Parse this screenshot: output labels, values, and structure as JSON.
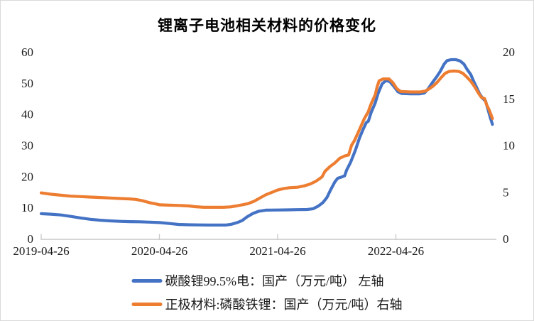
{
  "title": "锂离子电池相关材料的价格变化",
  "colors": {
    "background": "#ffffff",
    "frame_border": "#d9d9d9",
    "axis_line": "#c9c9c9",
    "tick_mark": "#c9c9c9",
    "text": "#1a1a1a",
    "series_blue": "#4472C4",
    "series_orange": "#ED7D31"
  },
  "chart_data": {
    "type": "line",
    "title": "锂离子电池相关材料的价格变化",
    "grid": false,
    "legend_position": "bottom",
    "x_axis": {
      "unit": "date",
      "tick_labels": [
        "2019-04-26",
        "2020-04-26",
        "2021-04-26",
        "2022-04-26"
      ],
      "tick_months": [
        0,
        12,
        24,
        36
      ],
      "months_span": 46.2
    },
    "left_axis": {
      "ticks": [
        0,
        10,
        20,
        30,
        40,
        50,
        60
      ],
      "range": [
        0,
        60
      ]
    },
    "right_axis": {
      "ticks": [
        0,
        5,
        10,
        15,
        20
      ],
      "range": [
        0,
        20
      ]
    },
    "series": [
      {
        "id": "lithium-carbonate",
        "name": "碳酸锂99.5%电：国产（万元/吨） 左轴",
        "axis": "left",
        "color": "#4472C4",
        "points": [
          [
            0,
            8.0
          ],
          [
            1,
            7.85
          ],
          [
            2,
            7.6
          ],
          [
            3,
            7.15
          ],
          [
            4,
            6.65
          ],
          [
            5,
            6.2
          ],
          [
            6,
            5.9
          ],
          [
            7,
            5.7
          ],
          [
            8,
            5.55
          ],
          [
            9,
            5.45
          ],
          [
            10,
            5.4
          ],
          [
            11,
            5.3
          ],
          [
            12,
            5.15
          ],
          [
            13,
            4.85
          ],
          [
            14,
            4.55
          ],
          [
            15,
            4.45
          ],
          [
            16,
            4.4
          ],
          [
            17,
            4.35
          ],
          [
            18,
            4.35
          ],
          [
            18.7,
            4.35
          ],
          [
            19.3,
            4.6
          ],
          [
            19.9,
            5.15
          ],
          [
            20.4,
            5.8
          ],
          [
            20.9,
            7.0
          ],
          [
            21.5,
            8.1
          ],
          [
            22.1,
            8.8
          ],
          [
            22.8,
            9.15
          ],
          [
            24,
            9.2
          ],
          [
            25,
            9.25
          ],
          [
            26,
            9.3
          ],
          [
            27,
            9.35
          ],
          [
            27.6,
            9.6
          ],
          [
            28.1,
            10.4
          ],
          [
            28.6,
            11.6
          ],
          [
            29,
            13.2
          ],
          [
            29.4,
            15.8
          ],
          [
            29.8,
            18.2
          ],
          [
            30.1,
            19.4
          ],
          [
            30.5,
            19.8
          ],
          [
            30.8,
            20.2
          ],
          [
            31,
            22
          ],
          [
            31.4,
            24.5
          ],
          [
            31.9,
            28.5
          ],
          [
            32.3,
            32.3
          ],
          [
            32.7,
            35.3
          ],
          [
            33,
            37.3
          ],
          [
            33.2,
            37.7
          ],
          [
            33.5,
            40.6
          ],
          [
            33.9,
            43.6
          ],
          [
            34.2,
            46.7
          ],
          [
            34.6,
            49.7
          ],
          [
            35,
            50.8
          ],
          [
            35.4,
            50.4
          ],
          [
            35.8,
            48.9
          ],
          [
            36.2,
            47.2
          ],
          [
            36.6,
            46.6
          ],
          [
            37.5,
            46.5
          ],
          [
            38.4,
            46.5
          ],
          [
            38.9,
            46.8
          ],
          [
            39.3,
            48.2
          ],
          [
            39.7,
            50.1
          ],
          [
            40.1,
            51.8
          ],
          [
            40.5,
            53.7
          ],
          [
            40.9,
            56.1
          ],
          [
            41.2,
            57.2
          ],
          [
            41.6,
            57.5
          ],
          [
            42.1,
            57.5
          ],
          [
            42.5,
            57.1
          ],
          [
            42.9,
            56.1
          ],
          [
            43.2,
            54.5
          ],
          [
            43.6,
            52.7
          ],
          [
            43.9,
            50.5
          ],
          [
            44.2,
            48.5
          ],
          [
            44.5,
            46.5
          ],
          [
            44.8,
            45.1
          ],
          [
            45.1,
            44.2
          ],
          [
            45.35,
            41.5
          ],
          [
            45.6,
            38.7
          ],
          [
            45.8,
            36.7
          ]
        ]
      },
      {
        "id": "lfp-cathode",
        "name": "正极材料:磷酸铁锂：国产（万元/吨）右轴",
        "axis": "right",
        "color": "#ED7D31",
        "points": [
          [
            0,
            4.9
          ],
          [
            1,
            4.75
          ],
          [
            2,
            4.65
          ],
          [
            3,
            4.55
          ],
          [
            4,
            4.5
          ],
          [
            5,
            4.45
          ],
          [
            6,
            4.4
          ],
          [
            7,
            4.35
          ],
          [
            8,
            4.3
          ],
          [
            9,
            4.25
          ],
          [
            9.6,
            4.2
          ],
          [
            10.3,
            4.05
          ],
          [
            11,
            3.85
          ],
          [
            11.7,
            3.7
          ],
          [
            12,
            3.62
          ],
          [
            13,
            3.58
          ],
          [
            14,
            3.55
          ],
          [
            15,
            3.5
          ],
          [
            15.6,
            3.42
          ],
          [
            16.5,
            3.35
          ],
          [
            17.5,
            3.35
          ],
          [
            18.5,
            3.35
          ],
          [
            19.2,
            3.4
          ],
          [
            19.8,
            3.5
          ],
          [
            20.4,
            3.62
          ],
          [
            21,
            3.75
          ],
          [
            21.6,
            4.0
          ],
          [
            22.2,
            4.35
          ],
          [
            22.8,
            4.7
          ],
          [
            23.4,
            4.95
          ],
          [
            24,
            5.2
          ],
          [
            24.6,
            5.35
          ],
          [
            25.2,
            5.45
          ],
          [
            26,
            5.5
          ],
          [
            26.7,
            5.65
          ],
          [
            27.3,
            5.85
          ],
          [
            27.9,
            6.15
          ],
          [
            28.5,
            6.6
          ],
          [
            28.8,
            7.2
          ],
          [
            29.3,
            7.7
          ],
          [
            29.8,
            8.1
          ],
          [
            30.3,
            8.6
          ],
          [
            30.8,
            8.85
          ],
          [
            31.2,
            8.95
          ],
          [
            31.5,
            10.0
          ],
          [
            31.8,
            10.5
          ],
          [
            32.1,
            11.2
          ],
          [
            32.4,
            11.9
          ],
          [
            32.8,
            12.85
          ],
          [
            33.2,
            13.6
          ],
          [
            33.4,
            14.2
          ],
          [
            33.6,
            14.7
          ],
          [
            33.9,
            15.4
          ],
          [
            34.1,
            16.25
          ],
          [
            34.3,
            16.9
          ],
          [
            34.7,
            17.1
          ],
          [
            35.3,
            17.1
          ],
          [
            35.7,
            16.7
          ],
          [
            36.1,
            16.05
          ],
          [
            36.5,
            15.75
          ],
          [
            37.5,
            15.7
          ],
          [
            38.5,
            15.7
          ],
          [
            39,
            15.8
          ],
          [
            39.4,
            16.05
          ],
          [
            39.8,
            16.35
          ],
          [
            40.2,
            16.75
          ],
          [
            40.6,
            17.25
          ],
          [
            41,
            17.7
          ],
          [
            41.4,
            17.9
          ],
          [
            41.9,
            17.95
          ],
          [
            42.4,
            17.9
          ],
          [
            42.8,
            17.7
          ],
          [
            43.2,
            17.3
          ],
          [
            43.6,
            16.85
          ],
          [
            44,
            16.25
          ],
          [
            44.4,
            15.55
          ],
          [
            44.7,
            15.1
          ],
          [
            45,
            15.0
          ],
          [
            45.2,
            14.35
          ],
          [
            45.5,
            13.7
          ],
          [
            45.8,
            12.85
          ]
        ]
      }
    ]
  }
}
